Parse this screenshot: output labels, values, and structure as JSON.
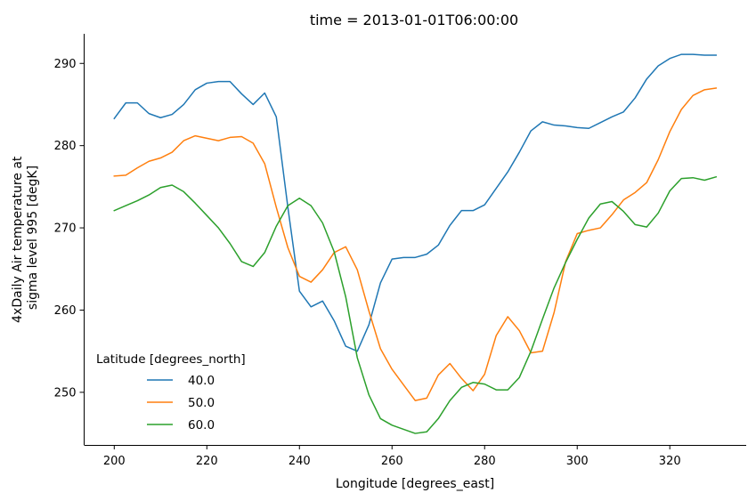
{
  "chart_data": {
    "type": "line",
    "title": "time = 2013-01-01T06:00:00",
    "xlabel": "Longitude [degrees_east]",
    "ylabel_lines": [
      "4xDaily Air temperature at",
      "sigma level 995 [degK]"
    ],
    "xlim": [
      193.5,
      336.5
    ],
    "ylim": [
      243.6,
      293.6
    ],
    "xticks": [
      200,
      220,
      240,
      260,
      280,
      300,
      320
    ],
    "yticks": [
      250,
      260,
      270,
      280,
      290
    ],
    "grid": false,
    "legend": {
      "title": "Latitude [degrees_north]",
      "placement": "lower-left"
    },
    "x": [
      200,
      202.5,
      205,
      207.5,
      210,
      212.5,
      215,
      217.5,
      220,
      222.5,
      225,
      227.5,
      230,
      232.5,
      235,
      237.5,
      240,
      242.5,
      245,
      247.5,
      250,
      252.5,
      255,
      257.5,
      260,
      262.5,
      265,
      267.5,
      270,
      272.5,
      275,
      277.5,
      280,
      282.5,
      285,
      287.5,
      290,
      292.5,
      295,
      297.5,
      300,
      302.5,
      305,
      307.5,
      310,
      312.5,
      315,
      317.5,
      320,
      322.5,
      325,
      327.5,
      330
    ],
    "series": [
      {
        "name": "40.0",
        "color": "#1f77b4",
        "values": [
          283.3,
          285.2,
          285.2,
          283.9,
          283.4,
          283.8,
          285.0,
          286.8,
          287.6,
          287.8,
          287.8,
          286.3,
          285.0,
          286.4,
          283.5,
          272.5,
          262.3,
          260.4,
          261.1,
          258.7,
          255.6,
          255.0,
          258.2,
          263.3,
          266.2,
          266.4,
          266.4,
          266.8,
          267.9,
          270.3,
          272.1,
          272.1,
          272.8,
          274.8,
          276.8,
          279.2,
          281.8,
          282.9,
          282.5,
          282.4,
          282.2,
          282.1,
          282.8,
          283.5,
          284.1,
          285.8,
          288.1,
          289.7,
          290.6,
          291.1,
          291.1,
          291.0,
          291.0
        ]
      },
      {
        "name": "50.0",
        "color": "#ff7f0e",
        "values": [
          276.3,
          276.4,
          277.3,
          278.1,
          278.5,
          279.2,
          280.6,
          281.2,
          280.9,
          280.6,
          281.0,
          281.1,
          280.3,
          277.8,
          272.5,
          267.6,
          264.1,
          263.4,
          264.9,
          267.0,
          267.7,
          264.9,
          259.9,
          255.3,
          252.8,
          250.9,
          249.0,
          249.3,
          252.1,
          253.5,
          251.7,
          250.2,
          252.2,
          256.9,
          259.2,
          257.5,
          254.8,
          255.0,
          259.7,
          265.9,
          269.3,
          269.7,
          270.0,
          271.6,
          273.4,
          274.3,
          275.5,
          278.3,
          281.7,
          284.4,
          286.1,
          286.8,
          287.0
        ]
      },
      {
        "name": "60.0",
        "color": "#2ca02c",
        "values": [
          272.1,
          272.7,
          273.3,
          274.0,
          274.9,
          275.2,
          274.4,
          273.0,
          271.5,
          270.0,
          268.1,
          265.9,
          265.3,
          267.0,
          270.2,
          272.7,
          273.6,
          272.7,
          270.6,
          267.1,
          261.6,
          254.2,
          249.7,
          246.8,
          246.0,
          245.5,
          245.0,
          245.2,
          246.8,
          249.0,
          250.6,
          251.2,
          251.0,
          250.3,
          250.3,
          251.8,
          255.0,
          258.9,
          262.7,
          265.8,
          268.6,
          271.2,
          272.9,
          273.2,
          272.0,
          270.4,
          270.1,
          271.8,
          274.5,
          276.0,
          276.1,
          275.8,
          276.2
        ]
      }
    ]
  }
}
